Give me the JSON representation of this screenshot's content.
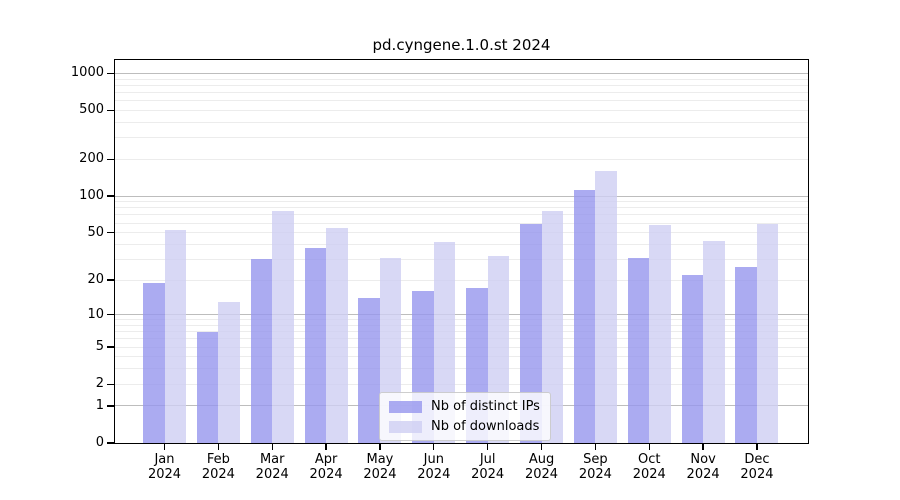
{
  "chart_data": {
    "type": "bar",
    "title": "pd.cyngene.1.0.st 2024",
    "categories": [
      {
        "month": "Jan",
        "year": "2024"
      },
      {
        "month": "Feb",
        "year": "2024"
      },
      {
        "month": "Mar",
        "year": "2024"
      },
      {
        "month": "Apr",
        "year": "2024"
      },
      {
        "month": "May",
        "year": "2024"
      },
      {
        "month": "Jun",
        "year": "2024"
      },
      {
        "month": "Jul",
        "year": "2024"
      },
      {
        "month": "Aug",
        "year": "2024"
      },
      {
        "month": "Sep",
        "year": "2024"
      },
      {
        "month": "Oct",
        "year": "2024"
      },
      {
        "month": "Nov",
        "year": "2024"
      },
      {
        "month": "Dec",
        "year": "2024"
      }
    ],
    "series": [
      {
        "name": "Nb of distinct IPs",
        "color": "rgba(150,150,238,0.8)",
        "values": [
          19,
          7,
          30,
          37,
          14,
          16,
          17,
          59,
          113,
          31,
          22,
          26
        ]
      },
      {
        "name": "Nb of downloads",
        "color": "rgba(206,206,243,0.8)",
        "values": [
          53,
          13,
          75,
          55,
          31,
          42,
          32,
          75,
          160,
          58,
          43,
          59
        ]
      }
    ],
    "y_ticks": [
      0,
      1,
      2,
      5,
      10,
      20,
      50,
      100,
      200,
      500,
      1000
    ],
    "y_scale": "log1p",
    "ylim": [
      0,
      1300
    ],
    "grid": "horizontal major (powers of 10) + faint minors",
    "legend_position": "inside lower-center"
  }
}
